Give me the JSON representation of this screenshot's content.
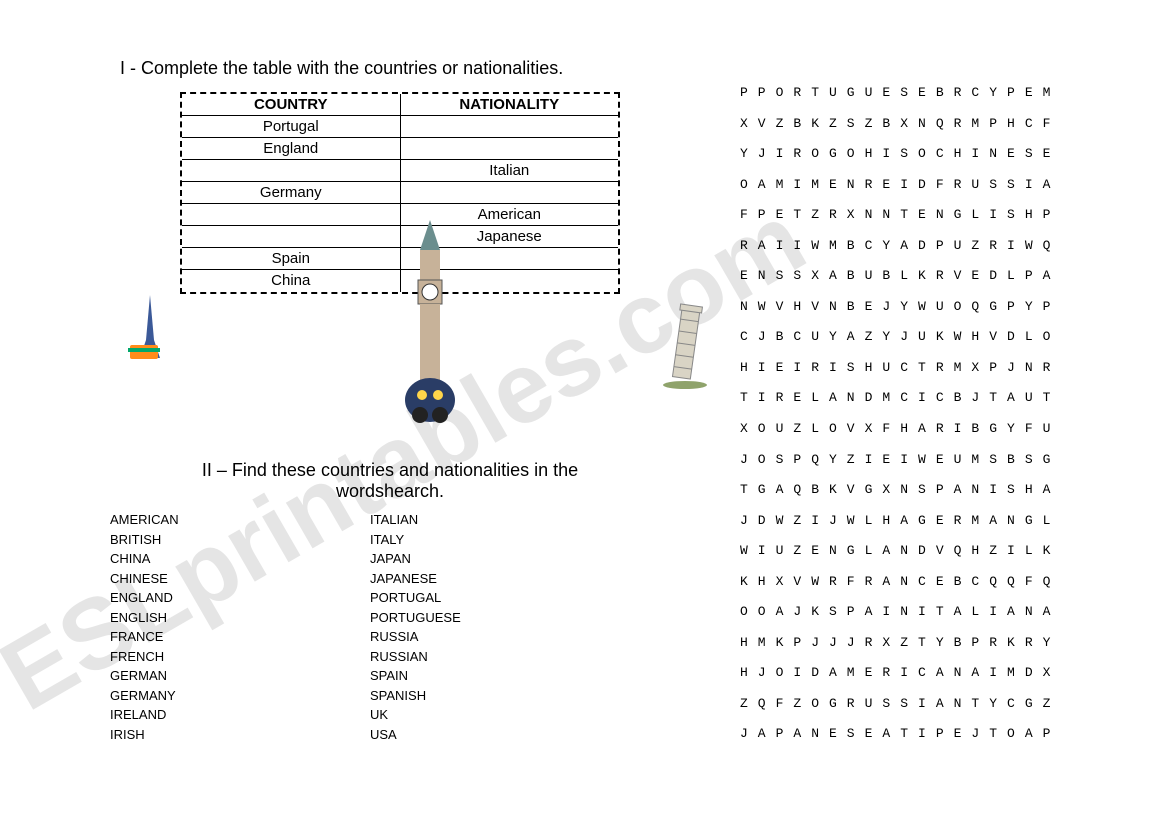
{
  "watermark_text": "ESLprintables.com",
  "section1": {
    "heading": "I - Complete the table with the countries or nationalities.",
    "headers": {
      "country": "COUNTRY",
      "nationality": "NATIONALITY"
    },
    "rows": [
      {
        "country": "Portugal",
        "nationality": ""
      },
      {
        "country": "England",
        "nationality": ""
      },
      {
        "country": "",
        "nationality": "Italian"
      },
      {
        "country": "Germany",
        "nationality": ""
      },
      {
        "country": "",
        "nationality": "American"
      },
      {
        "country": "",
        "nationality": "Japanese"
      },
      {
        "country": "Spain",
        "nationality": ""
      },
      {
        "country": "China",
        "nationality": ""
      }
    ]
  },
  "section2": {
    "heading": "II – Find these countries and nationalities in the wordshearch.",
    "words_col1": [
      "AMERICAN",
      "BRITISH",
      "CHINA",
      "CHINESE",
      "ENGLAND",
      "ENGLISH",
      "FRANCE",
      "FRENCH",
      "GERMAN",
      "GERMANY",
      "IRELAND",
      "IRISH"
    ],
    "words_col2": [
      "ITALIAN",
      "ITALY",
      "JAPAN",
      "JAPANESE",
      "PORTUGAL",
      "PORTUGUESE",
      "RUSSIA",
      "RUSSIAN",
      "SPAIN",
      "SPANISH",
      "UK",
      "USA"
    ]
  },
  "wordsearch_grid": [
    "PPORTUGUESEBRCYPEM",
    "XVZBKZSZBXNQRMPHCF",
    "YJIROGOHISOCHINESE",
    "OAMIMENREIDFRUSSIA",
    "FPETZRXNNTENGLISHP",
    "RAIIWMBCYADPUZRIWQ",
    "ENSSXABUBLKRVEDLPA",
    "NWVHVNBEJYWUOQGPYP",
    "CJBCUYAZYJUKWHVDLO",
    "HIEIRISHUCTRMXPJNR",
    "TIRELANDMCICBJTAUT",
    "XOUZLOVXFHARIBGYFU",
    "JOSPQYZIEIWEUMSBSG",
    "TGAQBKVGXNSPANISHA",
    "JDWZIJWLHAGERMANGL",
    "WIUZENGLANDVQHZILK",
    "KHXVWRFRANCEBCQQFQ",
    "OOAJKSPAINITALIANA",
    "HMKPJJJRXZTYBPRKRY",
    "HJOIDAMERICANAIMDX",
    "ZQFZOGRUSSIANTYCGZ",
    "JAPANESEATIPEJTOAP"
  ],
  "clipart": {
    "eiffel_label": "eiffel-tower-icon",
    "bigben_label": "big-ben-icon",
    "pisa_label": "pisa-tower-icon"
  },
  "styling": {
    "background_color": "#ffffff",
    "text_color": "#000000",
    "watermark_color": "#cccccc",
    "heading_fontsize": 18,
    "table_fontsize": 15,
    "wordlist_fontsize": 13,
    "wordsearch_fontsize": 13,
    "wordsearch_font": "Courier New",
    "body_font": "Arial",
    "wordlist_font": "Verdana"
  }
}
